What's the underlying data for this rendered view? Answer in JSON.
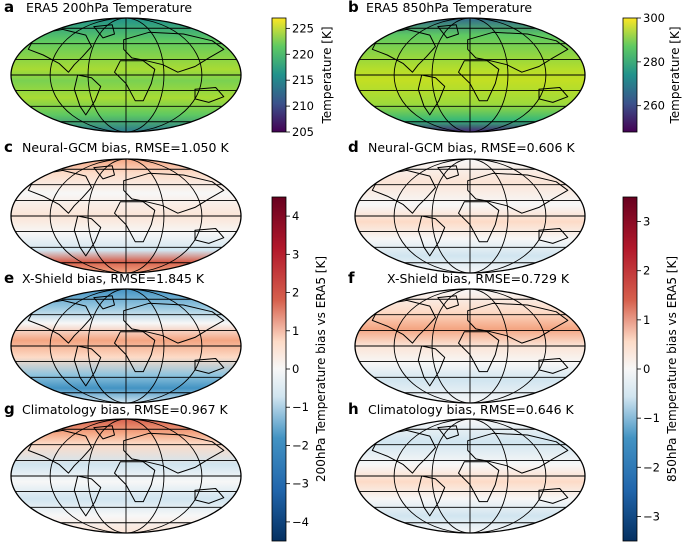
{
  "panels": [
    {
      "letter": "a",
      "title": "ERA5 200hPa Temperature"
    },
    {
      "letter": "b",
      "title": "ERA5 850hPa Temperature"
    },
    {
      "letter": "c",
      "title": "Neural-GCM bias, RMSE=1.050 K"
    },
    {
      "letter": "d",
      "title": "Neural-GCM bias, RMSE=0.606 K"
    },
    {
      "letter": "e",
      "title": "X-Shield bias, RMSE=1.845 K"
    },
    {
      "letter": "f",
      "title": "X-Shield bias, RMSE=0.729 K"
    },
    {
      "letter": "g",
      "title": "Climatology bias, RMSE=0.967 K"
    },
    {
      "letter": "h",
      "title": "Climatology bias, RMSE=0.646 K"
    }
  ],
  "colorbars": {
    "temp200": {
      "label": "Temperature [K]",
      "ticks": [
        "225",
        "220",
        "215",
        "210",
        "205"
      ],
      "range": [
        205,
        227
      ]
    },
    "temp850": {
      "label": "Temperature [K]",
      "ticks": [
        "300",
        "280",
        "260"
      ],
      "range": [
        248,
        300
      ]
    },
    "bias200": {
      "label": "200hPa Temperature  bias vs ERA5 [K]",
      "ticks": [
        "4",
        "3",
        "2",
        "1",
        "0",
        "−1",
        "−2",
        "−3",
        "−4"
      ],
      "range": [
        -4.5,
        4.5
      ]
    },
    "bias850": {
      "label": "850hPa Temperature  bias vs ERA5 [K]",
      "ticks": [
        "3",
        "2",
        "1",
        "0",
        "−1",
        "−2",
        "−3"
      ],
      "range": [
        -3.5,
        3.5
      ]
    }
  },
  "colormaps": {
    "viridis": [
      "#440154",
      "#3b528b",
      "#21918c",
      "#5ec962",
      "#fde725"
    ],
    "diverging": [
      "#053061",
      "#4393c3",
      "#f7f7f7",
      "#d6604d",
      "#67001f"
    ]
  }
}
